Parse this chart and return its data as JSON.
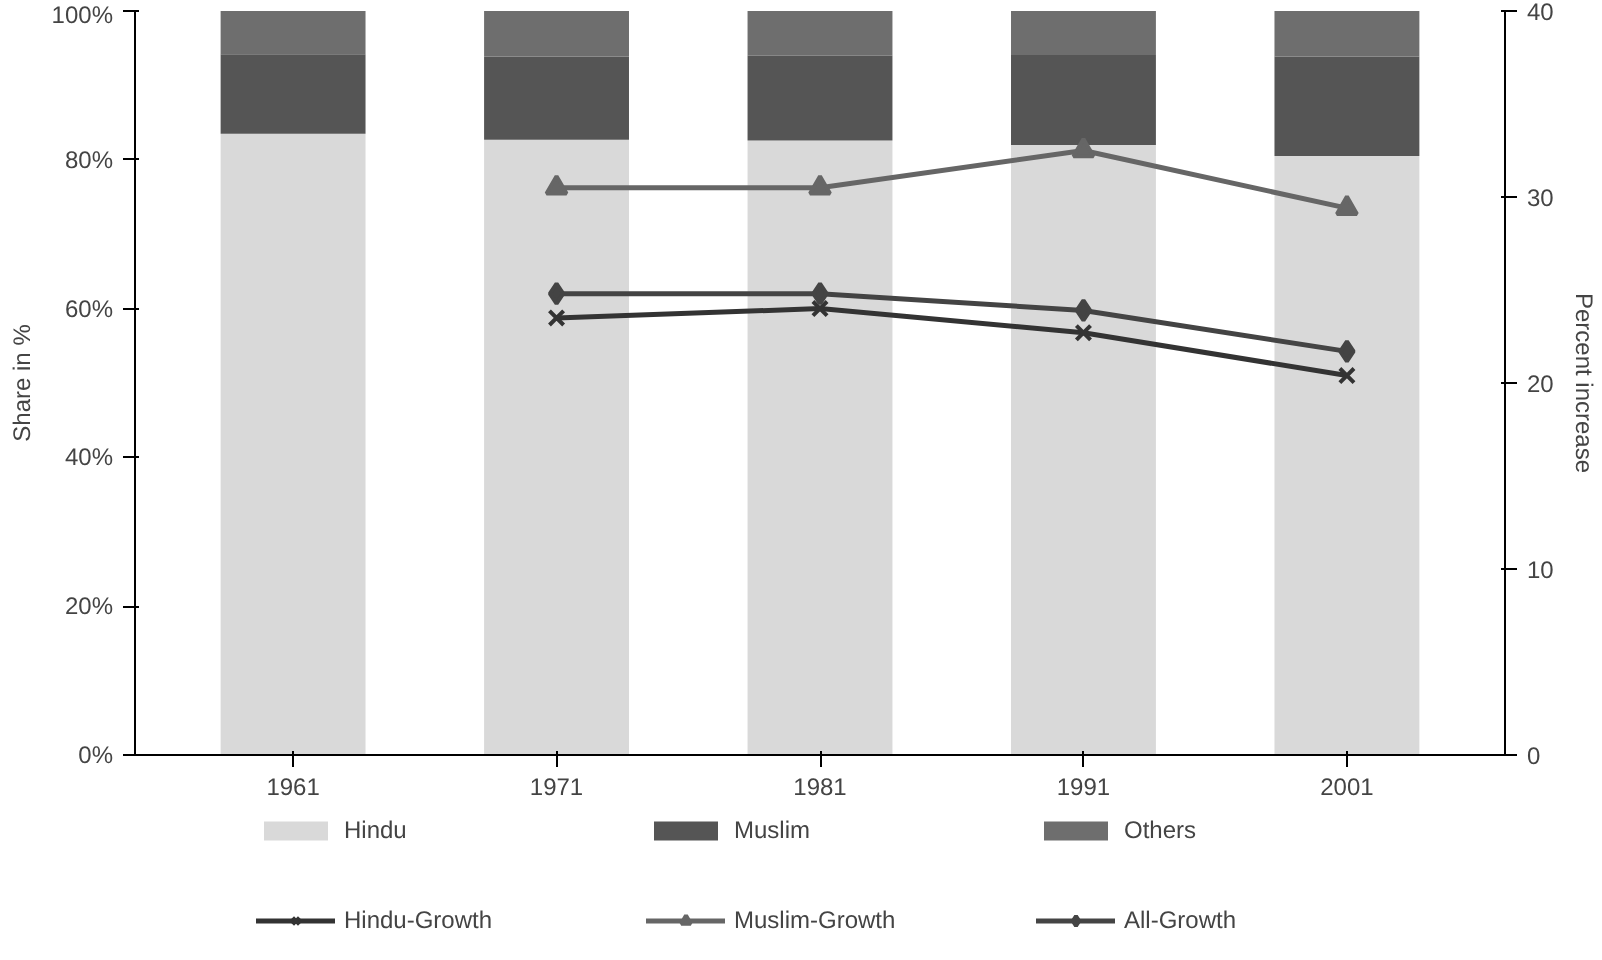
{
  "chart_data": {
    "type": "bar",
    "stacked": true,
    "categories": [
      "1961",
      "1971",
      "1981",
      "1991",
      "2001"
    ],
    "ylabel": "Share in %",
    "y2label": "Percent increase",
    "ylim": [
      0,
      100
    ],
    "yticks": [
      {
        "value": 0,
        "label": "0%"
      },
      {
        "value": 20,
        "label": "20%"
      },
      {
        "value": 40,
        "label": "40%"
      },
      {
        "value": 60,
        "label": "60%"
      },
      {
        "value": 80,
        "label": "80%"
      },
      {
        "value": 100,
        "label": "100%"
      }
    ],
    "y2lim": [
      0,
      40
    ],
    "y2ticks": [
      0,
      10,
      20,
      30,
      40
    ],
    "series": [
      {
        "name": "Hindu",
        "color": "#d9d9d9",
        "values": [
          83.5,
          82.7,
          82.6,
          82.0,
          80.5
        ]
      },
      {
        "name": "Muslim",
        "color": "#555555",
        "values": [
          10.7,
          11.2,
          11.4,
          12.1,
          13.4
        ]
      },
      {
        "name": "Others",
        "color": "#6e6e6e",
        "values": [
          5.8,
          6.1,
          6.0,
          5.9,
          6.1
        ]
      },
      {
        "name": "Hindu-Growth",
        "type": "line",
        "axis": "y2",
        "marker": "cross",
        "color": "#333333",
        "values": [
          null,
          23.5,
          24.0,
          22.7,
          20.4
        ]
      },
      {
        "name": "Muslim-Growth",
        "type": "line",
        "axis": "y2",
        "marker": "triangle",
        "color": "#666666",
        "values": [
          null,
          30.5,
          30.5,
          32.5,
          29.4
        ]
      },
      {
        "name": "All-Growth",
        "type": "line",
        "axis": "y2",
        "marker": "diamond",
        "color": "#444444",
        "values": [
          null,
          24.8,
          24.8,
          23.9,
          21.7
        ]
      }
    ],
    "legend": "bottom",
    "grid": false
  }
}
